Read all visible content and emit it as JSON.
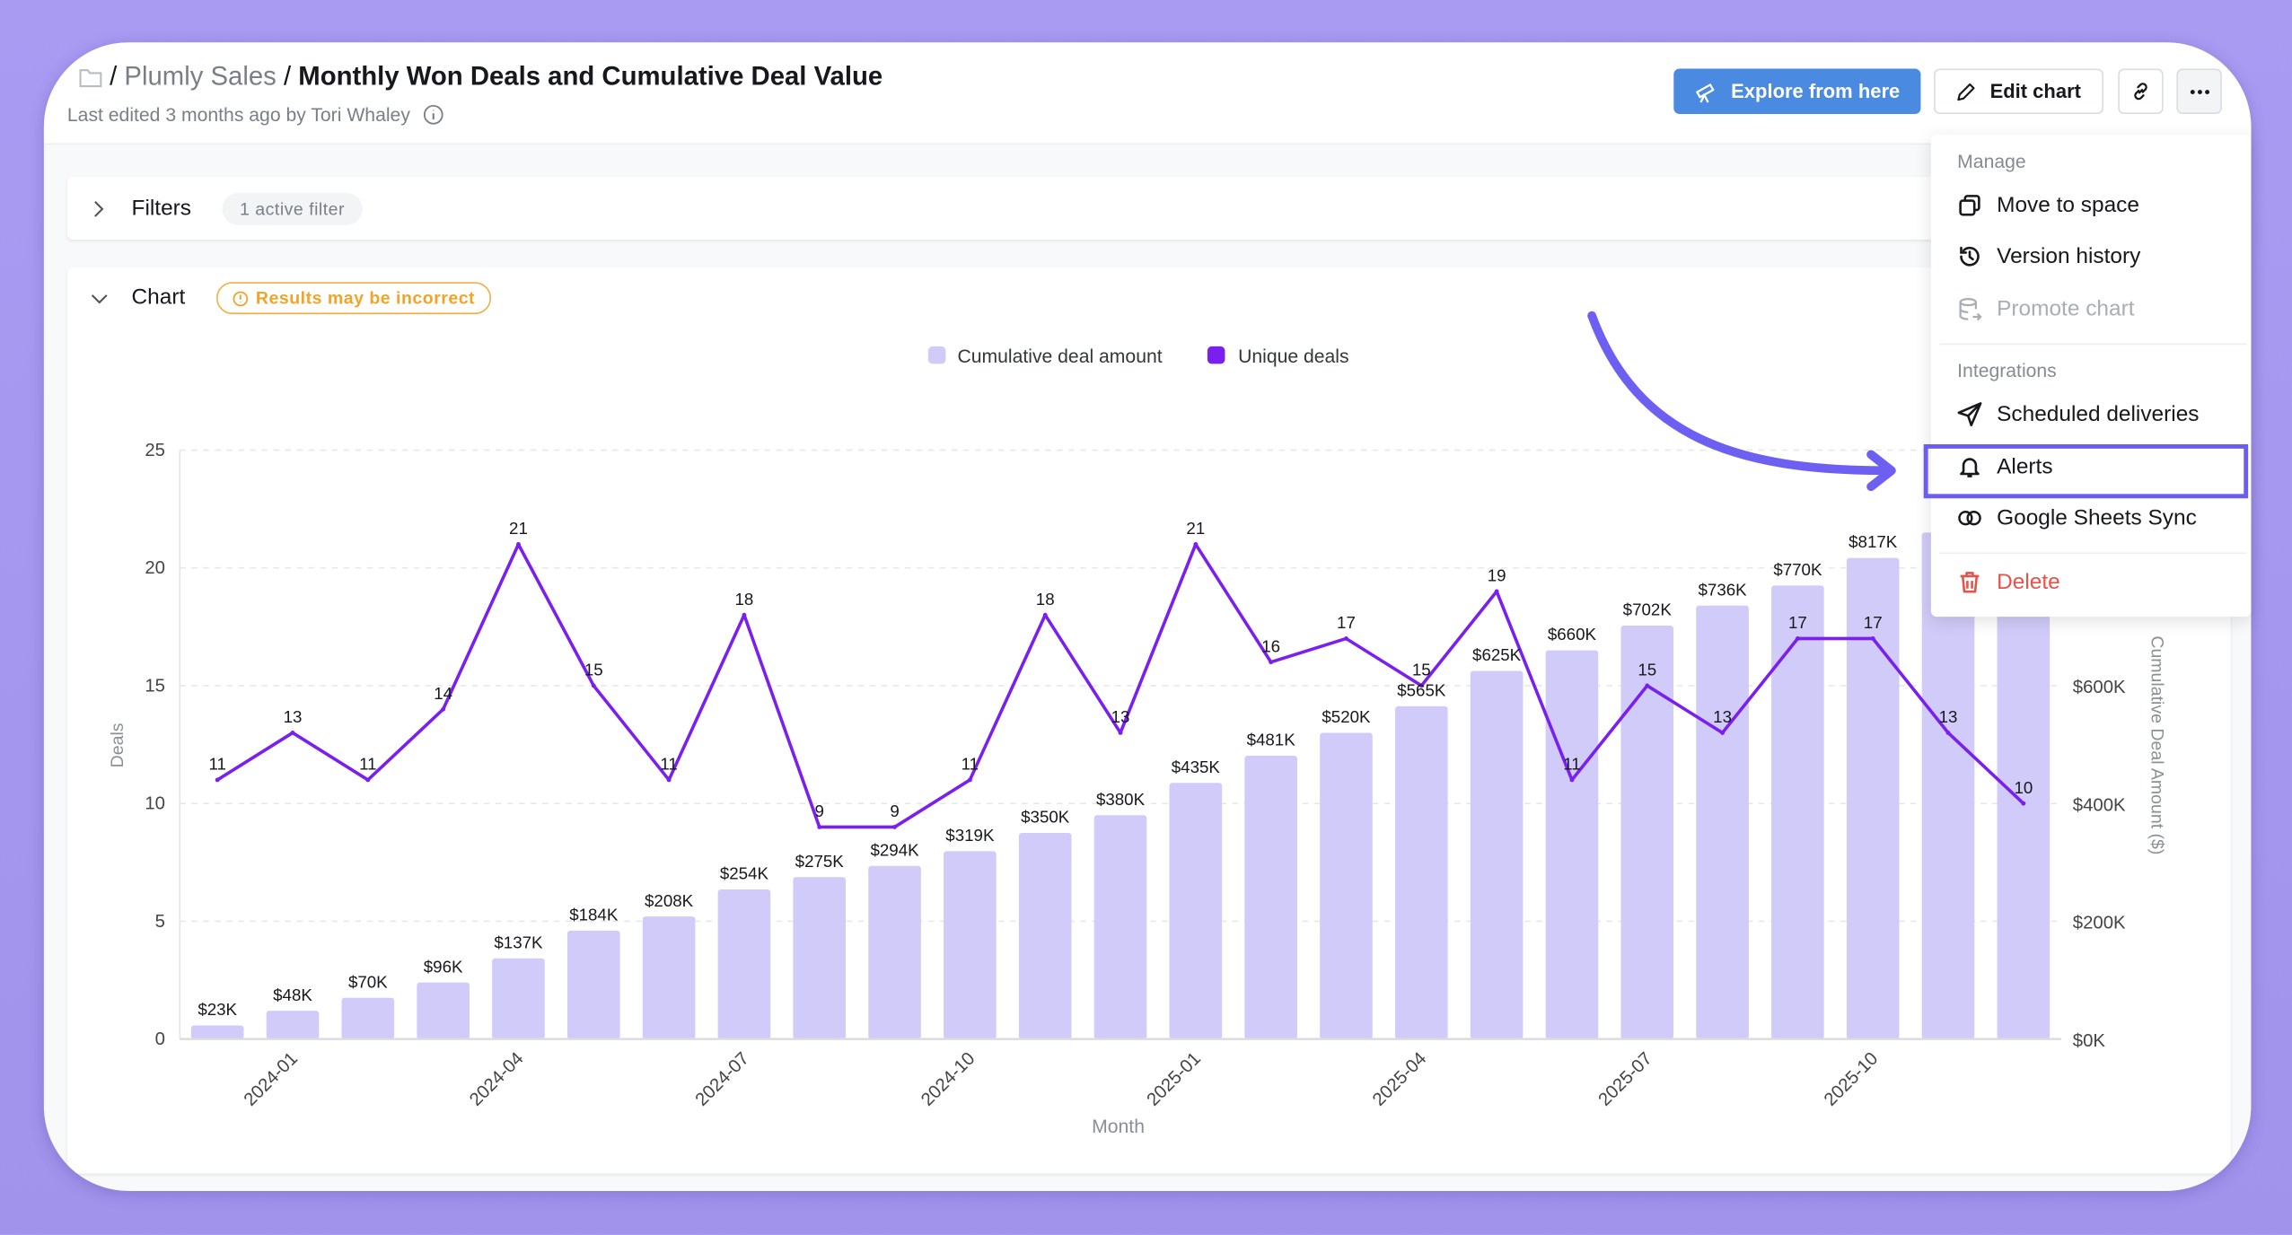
{
  "header": {
    "folder_icon": "folder-icon",
    "breadcrumb_sep": "/",
    "space": "Plumly Sales",
    "title": "Monthly Won Deals and Cumulative Deal Value",
    "subtitle": "Last edited 3 months ago by Tori Whaley"
  },
  "toolbar": {
    "explore_label": "Explore from here",
    "edit_label": "Edit chart"
  },
  "filters": {
    "label": "Filters",
    "badge": "1 active filter"
  },
  "chart_panel": {
    "label": "Chart",
    "warning": "Results may be incorrect"
  },
  "menu": {
    "manage_header": "Manage",
    "move": "Move to space",
    "version": "Version history",
    "promote": "Promote chart",
    "integrations_header": "Integrations",
    "scheduled": "Scheduled deliveries",
    "alerts": "Alerts",
    "sheets": "Google Sheets Sync",
    "delete": "Delete"
  },
  "colors": {
    "bar": "#d0cbf8",
    "line": "#7a1ff0",
    "accent": "#4a8ae0",
    "highlight": "#6b5df2",
    "danger": "#e5534b",
    "warning": "#f0a52a"
  },
  "chart_data": {
    "type": "bar+line",
    "legend": [
      {
        "name": "Cumulative deal amount",
        "color": "#d0cbf8"
      },
      {
        "name": "Unique deals",
        "color": "#7a1ff0"
      }
    ],
    "legend_position": "top",
    "xlabel": "Month",
    "ylabel_left": "Deals",
    "ylabel_right": "Cumulative Deal Amount ($)",
    "ylim_left": [
      0,
      25
    ],
    "ylim_right": [
      0,
      1000000
    ],
    "left_ticks": [
      "0",
      "5",
      "10",
      "15",
      "20",
      "25"
    ],
    "right_ticks": [
      "$0K",
      "$200K",
      "$400K",
      "$600K"
    ],
    "x_tick_labels": [
      "2024-01",
      "2024-04",
      "2024-07",
      "2024-10",
      "2025-01",
      "2025-04",
      "2025-07",
      "2025-10"
    ],
    "grid": true,
    "categories": [
      "2023-12",
      "2024-01",
      "2024-02",
      "2024-03",
      "2024-04",
      "2024-05",
      "2024-06",
      "2024-07",
      "2024-08",
      "2024-09",
      "2024-10",
      "2024-11",
      "2024-12",
      "2025-01",
      "2025-02",
      "2025-03",
      "2025-04",
      "2025-05",
      "2025-06",
      "2025-07",
      "2025-08",
      "2025-09",
      "2025-10",
      "2025-11",
      "2025-12"
    ],
    "series": [
      {
        "name": "Cumulative deal amount",
        "axis": "right",
        "kind": "bar",
        "values": [
          23000,
          48000,
          70000,
          96000,
          137000,
          184000,
          208000,
          254000,
          275000,
          294000,
          319000,
          350000,
          380000,
          435000,
          481000,
          520000,
          565000,
          625000,
          660000,
          702000,
          736000,
          770000,
          817000,
          860000,
          895000
        ],
        "labels": [
          "$23K",
          "$48K",
          "$70K",
          "$96K",
          "$137K",
          "$184K",
          "$208K",
          "$254K",
          "$275K",
          "$294K",
          "$319K",
          "$350K",
          "$380K",
          "$435K",
          "$481K",
          "$520K",
          "$565K",
          "$625K",
          "$660K",
          "$702K",
          "$736K",
          "$770K",
          "$817K",
          "",
          ""
        ]
      },
      {
        "name": "Unique deals",
        "axis": "left",
        "kind": "line",
        "values": [
          11,
          13,
          11,
          14,
          21,
          15,
          11,
          18,
          9,
          9,
          11,
          18,
          13,
          21,
          16,
          17,
          15,
          19,
          11,
          15,
          13,
          17,
          17,
          13,
          10
        ]
      }
    ]
  }
}
